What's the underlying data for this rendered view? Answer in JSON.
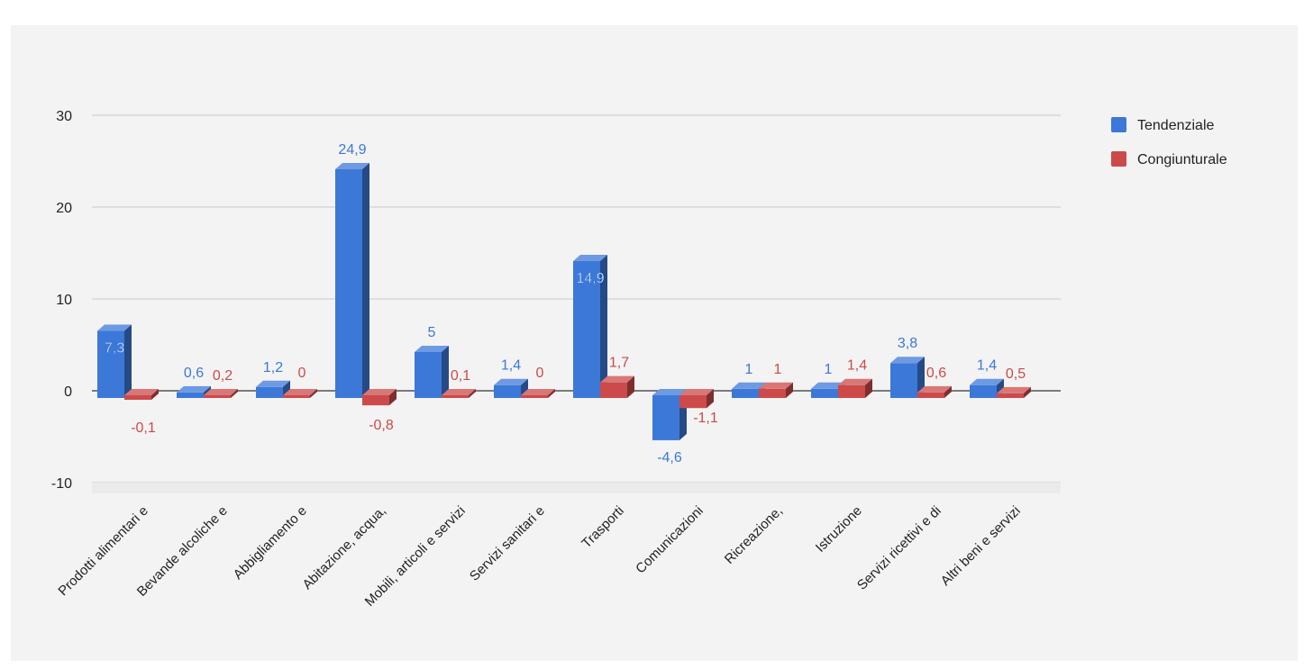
{
  "chart_data": {
    "type": "bar",
    "title": "",
    "xlabel": "",
    "ylabel": "",
    "ylim": [
      -10,
      30
    ],
    "yticks": [
      -10,
      0,
      10,
      20,
      30
    ],
    "grid": true,
    "legend_position": "right",
    "categories": [
      "Prodotti alimentari e",
      "Bevande alcoliche e",
      "Abbigliamento e",
      "Abitazione, acqua,",
      "Mobili, articoli e servizi",
      "Servizi sanitari e",
      "Trasporti",
      "Comunicazioni",
      "Ricreazione,",
      "Istruzione",
      "Servizi ricettivi e di",
      "Altri beni e servizi"
    ],
    "series": [
      {
        "name": "Tendenziale",
        "color": "#3c78d8",
        "values": [
          7.3,
          0.6,
          1.2,
          24.9,
          5,
          1.4,
          14.9,
          -4.6,
          1,
          1,
          3.8,
          1.4
        ],
        "labels": [
          "7,3",
          "0,6",
          "1,2",
          "24,9",
          "5",
          "1,4",
          "14,9",
          "-4,6",
          "1",
          "1",
          "3,8",
          "1,4"
        ]
      },
      {
        "name": "Congiunturale",
        "color": "#cc4a4a",
        "values": [
          -0.1,
          0.2,
          0,
          -0.8,
          0.1,
          0,
          1.7,
          -1.1,
          1,
          1.4,
          0.6,
          0.5
        ],
        "labels": [
          "-0,1",
          "0,2",
          "0",
          "-0,8",
          "0,1",
          "0",
          "1,7",
          "-1,1",
          "1",
          "1,4",
          "0,6",
          "0,5"
        ]
      }
    ]
  }
}
